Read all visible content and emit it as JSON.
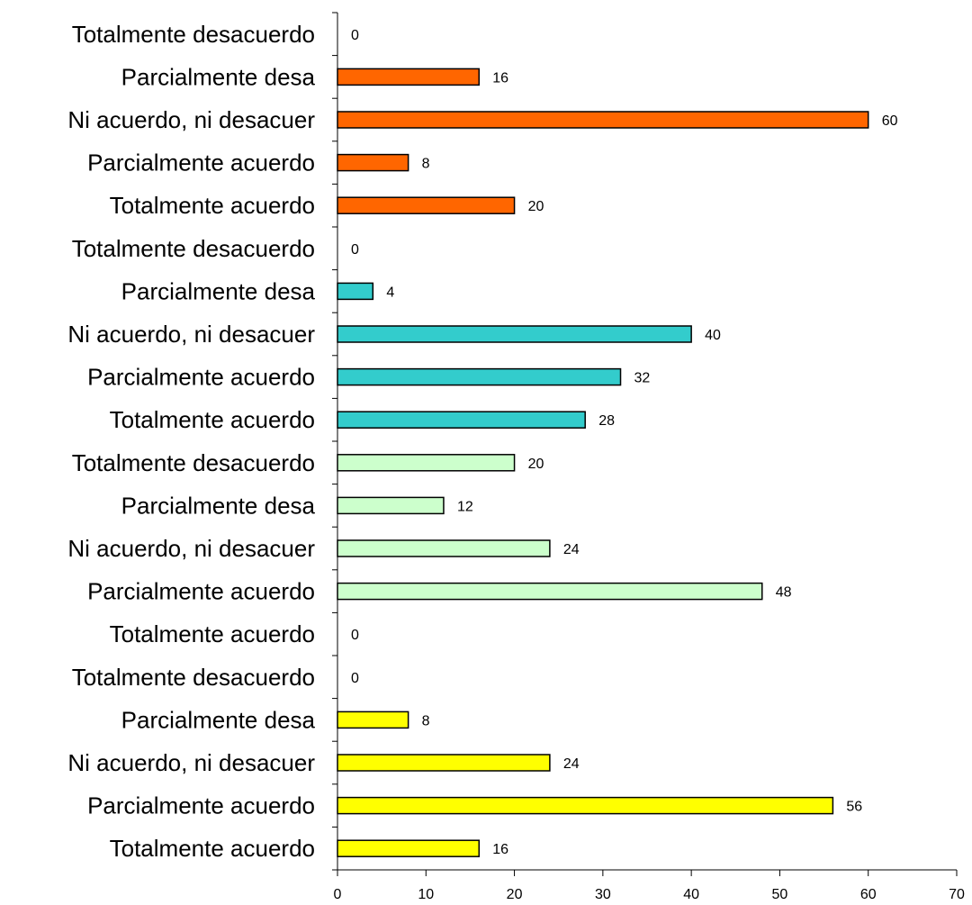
{
  "chart_data": {
    "type": "bar",
    "orientation": "horizontal",
    "title": "",
    "xlabel": "",
    "ylabel": "",
    "xlim": [
      0,
      70
    ],
    "x_ticks": [
      0,
      10,
      20,
      30,
      40,
      50,
      60,
      70
    ],
    "grid": false,
    "legend": "none",
    "rows": [
      {
        "label": "Totalmente desacuerdo",
        "value": 0,
        "color": "#FF6600"
      },
      {
        "label": "Parcialmente desa",
        "value": 16,
        "color": "#FF6600"
      },
      {
        "label": "Ni acuerdo, ni desacuer",
        "value": 60,
        "color": "#FF6600"
      },
      {
        "label": "Parcialmente acuerdo",
        "value": 8,
        "color": "#FF6600"
      },
      {
        "label": "Totalmente  acuerdo",
        "value": 20,
        "color": "#FF6600"
      },
      {
        "label": "Totalmente desacuerdo",
        "value": 0,
        "color": "#33CCCC"
      },
      {
        "label": "Parcialmente desa",
        "value": 4,
        "color": "#33CCCC"
      },
      {
        "label": "Ni acuerdo, ni desacuer",
        "value": 40,
        "color": "#33CCCC"
      },
      {
        "label": "Parcialmente acuerdo",
        "value": 32,
        "color": "#33CCCC"
      },
      {
        "label": "Totalmente  acuerdo",
        "value": 28,
        "color": "#33CCCC"
      },
      {
        "label": "Totalmente desacuerdo",
        "value": 20,
        "color": "#CCFFCC"
      },
      {
        "label": "Parcialmente desa",
        "value": 12,
        "color": "#CCFFCC"
      },
      {
        "label": "Ni acuerdo, ni desacuer",
        "value": 24,
        "color": "#CCFFCC"
      },
      {
        "label": "Parcialmente acuerdo",
        "value": 48,
        "color": "#CCFFCC"
      },
      {
        "label": "Totalmente  acuerdo",
        "value": 0,
        "color": "#CCFFCC"
      },
      {
        "label": "Totalmente desacuerdo",
        "value": 0,
        "color": "#FFFF00"
      },
      {
        "label": "Parcialmente desa",
        "value": 8,
        "color": "#FFFF00"
      },
      {
        "label": "Ni acuerdo, ni desacuer",
        "value": 24,
        "color": "#FFFF00"
      },
      {
        "label": "Parcialmente acuerdo",
        "value": 56,
        "color": "#FFFF00"
      },
      {
        "label": "Totalmente  acuerdo",
        "value": 16,
        "color": "#FFFF00"
      }
    ]
  }
}
